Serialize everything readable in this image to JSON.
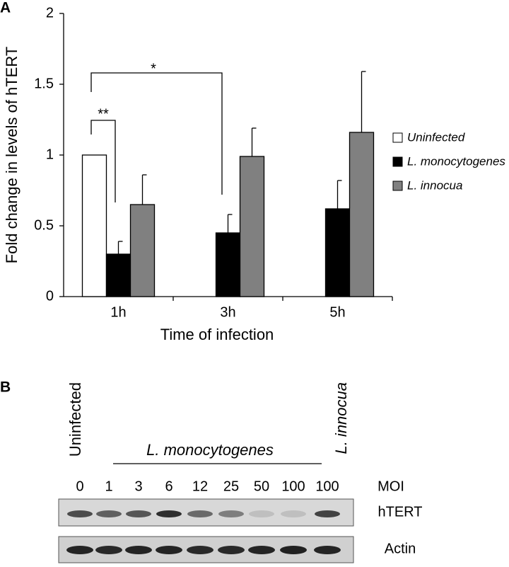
{
  "chart_data": {
    "type": "bar",
    "panel_label": "A",
    "y_label": "Fold change in levels of hTERT",
    "x_label": "Time of infection",
    "categories": [
      "1h",
      "3h",
      "5h"
    ],
    "series": [
      {
        "name": "Uninfected",
        "color": "#ffffff",
        "values": [
          1.0,
          null,
          null
        ],
        "errors": [
          null,
          null,
          null
        ]
      },
      {
        "name": "L. monocytogenes",
        "color": "#000000",
        "values": [
          0.3,
          0.45,
          0.62
        ],
        "errors": [
          0.09,
          0.13,
          0.2
        ]
      },
      {
        "name": "L. innocua",
        "color": "#808080",
        "values": [
          0.65,
          0.99,
          1.16
        ],
        "errors": [
          0.21,
          0.2,
          0.43
        ]
      }
    ],
    "ylim": [
      0,
      2
    ],
    "yticks": [
      0,
      0.5,
      1,
      1.5,
      2
    ],
    "annotations": [
      "**",
      "*"
    ]
  },
  "blot": {
    "panel_label": "B",
    "uninfected": "Uninfected",
    "infected": "L. monocytogenes",
    "control": "L. innocua",
    "moi_label": "MOI",
    "moi": [
      0,
      1,
      3,
      6,
      12,
      25,
      50,
      100,
      100
    ],
    "rows": [
      "hTERT",
      "Actin"
    ]
  }
}
